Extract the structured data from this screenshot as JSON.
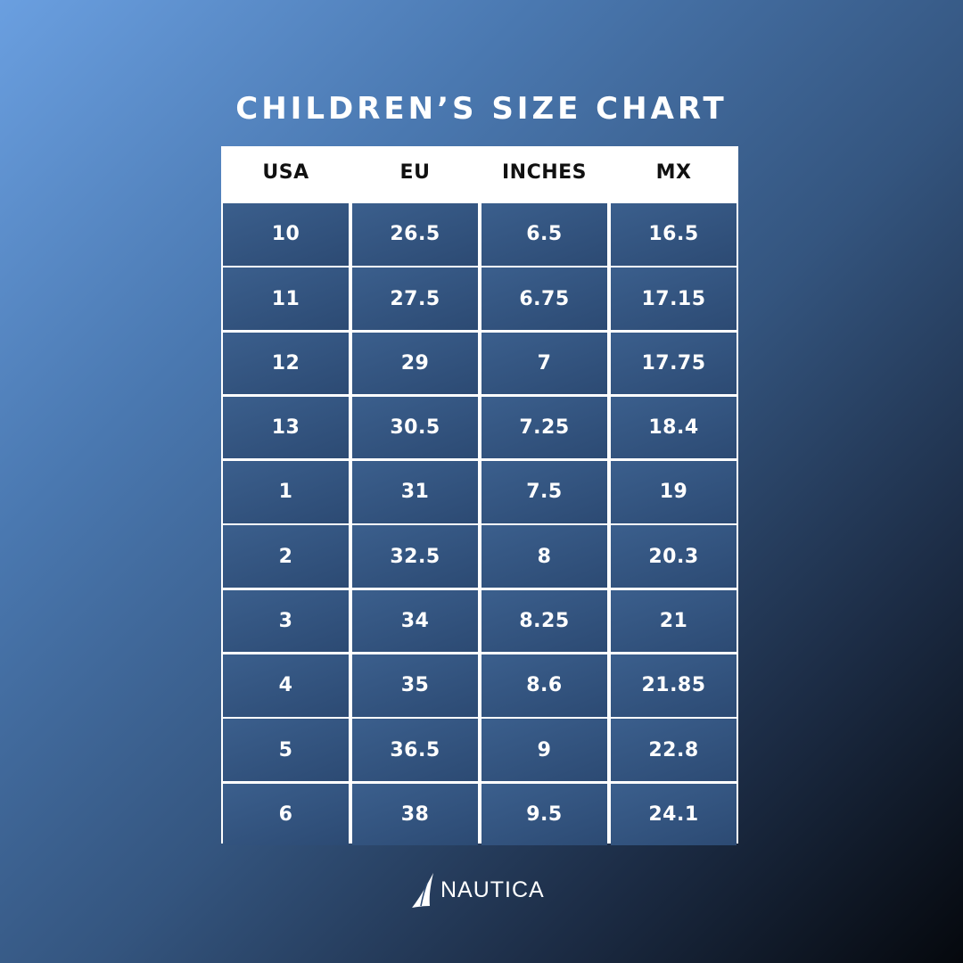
{
  "title": "CHILDREN’S SIZE CHART",
  "table": {
    "headers": [
      "USA",
      "EU",
      "INCHES",
      "MX"
    ],
    "rows": [
      [
        "10",
        "26.5",
        "6.5",
        "16.5"
      ],
      [
        "11",
        "27.5",
        "6.75",
        "17.15"
      ],
      [
        "12",
        "29",
        "7",
        "17.75"
      ],
      [
        "13",
        "30.5",
        "7.25",
        "18.4"
      ],
      [
        "1",
        "31",
        "7.5",
        "19"
      ],
      [
        "2",
        "32.5",
        "8",
        "20.3"
      ],
      [
        "3",
        "34",
        "8.25",
        "21"
      ],
      [
        "4",
        "35",
        "8.6",
        "21.85"
      ],
      [
        "5",
        "36.5",
        "9",
        "22.8"
      ],
      [
        "6",
        "38",
        "9.5",
        "24.1"
      ]
    ]
  },
  "brand": {
    "name": "NAUTICA",
    "icon": "sail-icon"
  },
  "colors": {
    "cell_fill": "#2f4e78",
    "header_fill": "#ffffff",
    "text_light": "#ffffff",
    "text_dark": "#111111"
  }
}
